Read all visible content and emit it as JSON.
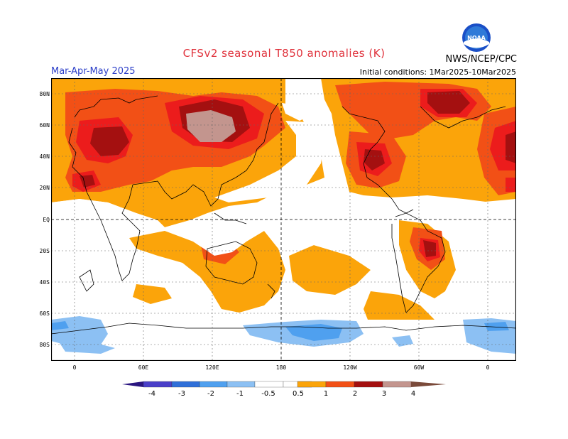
{
  "header": {
    "title": "CFSv2 seasonal T850 anomalies (K)",
    "season": "Mar-Apr-May 2025",
    "initial_conditions": "Initial conditions: 1Mar2025-10Mar2025",
    "agency": "NWS/NCEP/CPC",
    "logo_text": "NOAA"
  },
  "axes": {
    "lat_labels": [
      "80N",
      "60N",
      "40N",
      "20N",
      "EQ",
      "20S",
      "40S",
      "60S",
      "80S"
    ],
    "lon_labels": [
      "0",
      "60E",
      "120E",
      "180",
      "120W",
      "60W",
      "0"
    ]
  },
  "colorbar": {
    "labels": [
      "-4",
      "-3",
      "-2",
      "-1",
      "-0.5",
      "0.5",
      "1",
      "2",
      "3",
      "4"
    ],
    "colors": {
      "below_-4": "#2a1580",
      "-4_-3": "#4a3fc8",
      "-3_-2": "#2f6fd8",
      "-2_-1": "#4fa0ef",
      "-1_-0.5": "#8cc0f3",
      "-0.5_0.5": "#ffffff",
      "0.5_1": "#fba40a",
      "1_2": "#f25016",
      "2_3": "#ec1c1c",
      "3_4": "#a41010",
      "4_5": "#c3958e",
      "above_5": "#7a4a3a"
    }
  }
}
